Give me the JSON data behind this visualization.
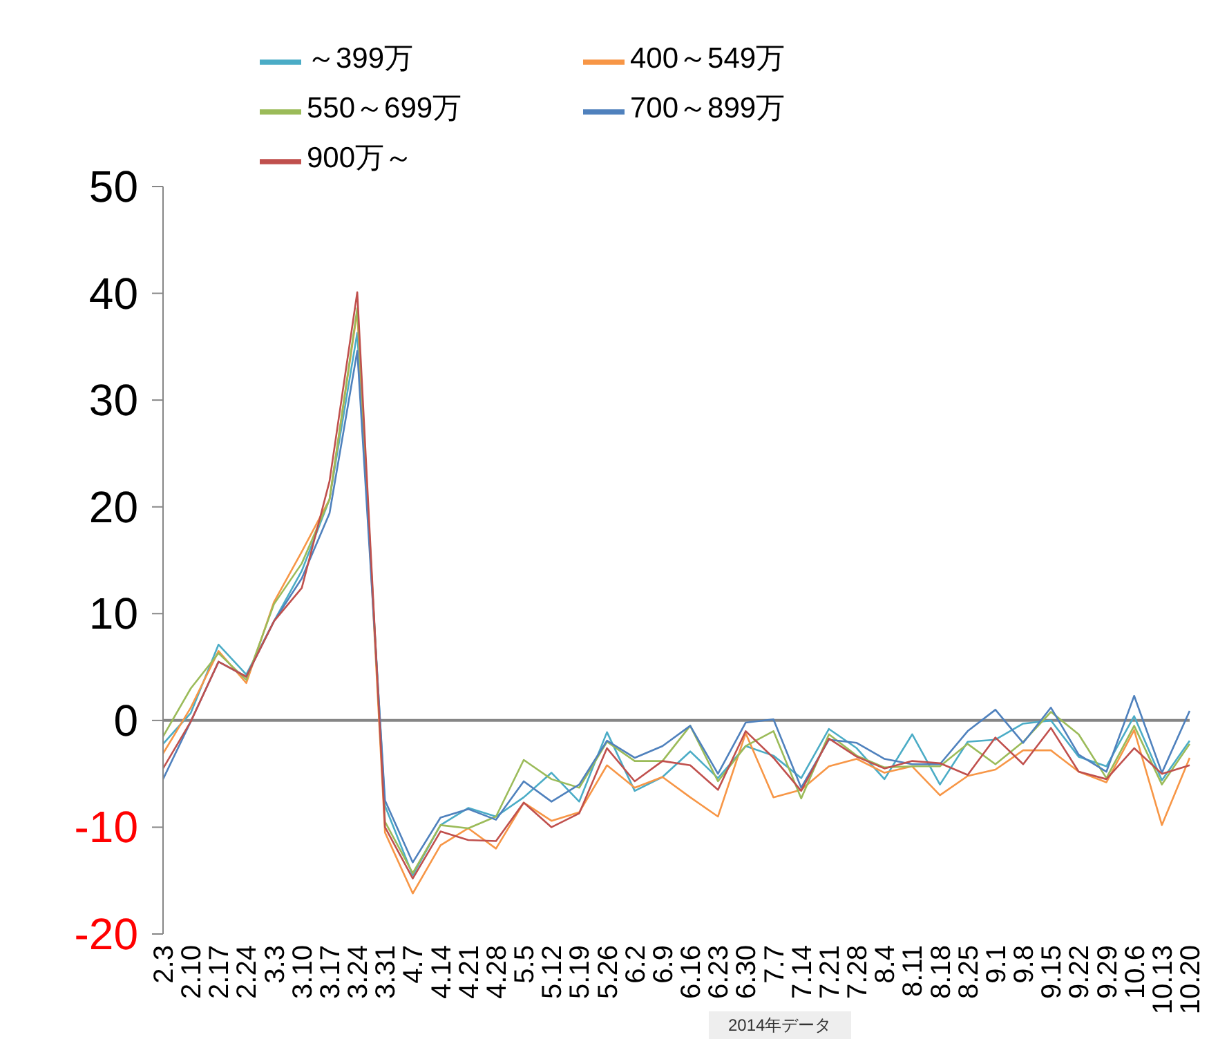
{
  "chart_data": {
    "type": "line",
    "categories": [
      "2.3",
      "2.10",
      "2.17",
      "2.24",
      "3.3",
      "3.10",
      "3.17",
      "3.24",
      "3.31",
      "4.7",
      "4.14",
      "4.21",
      "4.28",
      "5.5",
      "5.12",
      "5.19",
      "5.26",
      "6.2",
      "6.9",
      "6.16",
      "6.23",
      "6.30",
      "7.7",
      "7.14",
      "7.21",
      "7.28",
      "8.4",
      "8.11",
      "8.18",
      "8.25",
      "9.1",
      "9.8",
      "9.15",
      "9.22",
      "9.29",
      "10.6",
      "10.13",
      "10.20"
    ],
    "series": [
      {
        "name": "～399万",
        "color": "#4bacc6",
        "values": [
          -2.2,
          0.7,
          7.1,
          4.3,
          9.3,
          14.0,
          20.7,
          36.3,
          -8,
          -14.5,
          -9.8,
          -8.2,
          -9,
          -7.2,
          -4.9,
          -7.6,
          -1.1,
          -6.6,
          -5.3,
          -2.9,
          -5.4,
          -2.4,
          -3.3,
          -5.4,
          -0.8,
          -2.6,
          -5.5,
          -1.3,
          -6,
          -2,
          -1.8,
          -0.3,
          0,
          -3.4,
          -4.3,
          0.4,
          -5.6,
          -1.9
        ]
      },
      {
        "name": "400～549万",
        "color": "#f79646",
        "values": [
          -3.1,
          1.2,
          6.5,
          3.5,
          11.1,
          15.8,
          20.7,
          38.3,
          -10.5,
          -16.2,
          -11.7,
          -10.1,
          -12,
          -7.7,
          -9.4,
          -8.6,
          -4.2,
          -6.3,
          -5.3,
          -7.2,
          -9,
          -1.2,
          -7.2,
          -6.5,
          -4.3,
          -3.6,
          -4.9,
          -4.3,
          -7,
          -5.2,
          -4.6,
          -2.8,
          -2.8,
          -4.8,
          -5.8,
          -0.9,
          -9.8,
          -3.5
        ]
      },
      {
        "name": "550～699万",
        "color": "#9bbb59",
        "values": [
          -1.5,
          3.0,
          6.3,
          3.8,
          10.9,
          14.7,
          20.7,
          38.6,
          -9.5,
          -14.3,
          -9.8,
          -10.1,
          -9,
          -3.7,
          -5.5,
          -6.3,
          -2,
          -3.8,
          -3.8,
          -0.5,
          -5.7,
          -2.4,
          -1,
          -7.3,
          -1.3,
          -3.3,
          -4.4,
          -4.3,
          -4.3,
          -2.2,
          -4.1,
          -2,
          0.8,
          -1.3,
          -5.4,
          -0.5,
          -6,
          -2.2
        ]
      },
      {
        "name": "700～899万",
        "color": "#4f81bd",
        "values": [
          -5.5,
          -0.1,
          5.5,
          4.1,
          9.3,
          13.3,
          19.4,
          34.6,
          -7.5,
          -13.3,
          -9.1,
          -8.3,
          -9.3,
          -5.7,
          -7.6,
          -6,
          -1.9,
          -3.5,
          -2.4,
          -0.5,
          -5,
          -0.2,
          0.1,
          -6.3,
          -1.8,
          -2.1,
          -3.6,
          -4.1,
          -4.1,
          -1,
          1,
          -2.1,
          1.2,
          -3.2,
          -4.8,
          2.3,
          -4.9,
          0.9
        ]
      },
      {
        "name": "900万～",
        "color": "#c0504d",
        "values": [
          -4.5,
          -0.1,
          5.5,
          4.1,
          9.3,
          12.4,
          22.4,
          40.1,
          -10,
          -14.8,
          -10.4,
          -11.2,
          -11.3,
          -7.7,
          -10,
          -8.7,
          -2.6,
          -5.7,
          -3.8,
          -4.2,
          -6.5,
          -1,
          -3.5,
          -6.6,
          -1.7,
          -3.4,
          -4.5,
          -3.8,
          -4,
          -5.1,
          -1.6,
          -4.1,
          -0.7,
          -4.8,
          -5.5,
          -2.6,
          -5,
          -4.2
        ]
      }
    ],
    "ylim": [
      -20,
      50
    ],
    "yticks": [
      -20,
      -10,
      0,
      10,
      20,
      30,
      40,
      50
    ],
    "ref_lines": [
      {
        "axis": "y",
        "value": 0,
        "color": "#868686"
      }
    ],
    "legend": "top",
    "grid": false,
    "marker": "none",
    "line_style": "solid",
    "annotations": [
      "2014年データ"
    ]
  }
}
